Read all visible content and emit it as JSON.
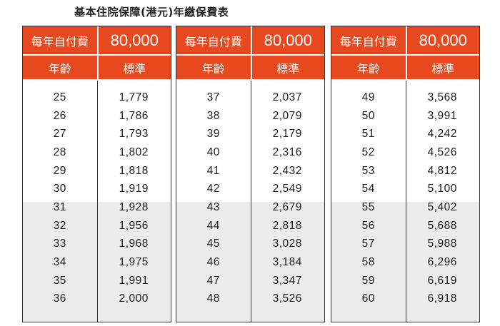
{
  "title": "基本住院保障(港元)年繳保費表",
  "header": {
    "deductible_label": "每年自付費",
    "deductible_value": "80,000",
    "age_label": "年齡",
    "plan_label": "標準"
  },
  "tables": [
    {
      "rows": [
        {
          "age": "25",
          "premium": "1,779"
        },
        {
          "age": "26",
          "premium": "1,786"
        },
        {
          "age": "27",
          "premium": "1,793"
        },
        {
          "age": "28",
          "premium": "1,802"
        },
        {
          "age": "29",
          "premium": "1,818"
        },
        {
          "age": "30",
          "premium": "1,919"
        },
        {
          "age": "31",
          "premium": "1,928"
        },
        {
          "age": "32",
          "premium": "1,956"
        },
        {
          "age": "33",
          "premium": "1,968"
        },
        {
          "age": "34",
          "premium": "1,975"
        },
        {
          "age": "35",
          "premium": "1,991"
        },
        {
          "age": "36",
          "premium": "2,000"
        }
      ]
    },
    {
      "rows": [
        {
          "age": "37",
          "premium": "2,037"
        },
        {
          "age": "38",
          "premium": "2,079"
        },
        {
          "age": "39",
          "premium": "2,179"
        },
        {
          "age": "40",
          "premium": "2,316"
        },
        {
          "age": "41",
          "premium": "2,432"
        },
        {
          "age": "42",
          "premium": "2,549"
        },
        {
          "age": "43",
          "premium": "2,679"
        },
        {
          "age": "44",
          "premium": "2,818"
        },
        {
          "age": "45",
          "premium": "3,028"
        },
        {
          "age": "46",
          "premium": "3,184"
        },
        {
          "age": "47",
          "premium": "3,347"
        },
        {
          "age": "48",
          "premium": "3,526"
        }
      ]
    },
    {
      "rows": [
        {
          "age": "49",
          "premium": "3,568"
        },
        {
          "age": "50",
          "premium": "3,991"
        },
        {
          "age": "51",
          "premium": "4,242"
        },
        {
          "age": "52",
          "premium": "4,526"
        },
        {
          "age": "53",
          "premium": "4,812"
        },
        {
          "age": "54",
          "premium": "5,100"
        },
        {
          "age": "55",
          "premium": "5,402"
        },
        {
          "age": "56",
          "premium": "5,688"
        },
        {
          "age": "57",
          "premium": "5,988"
        },
        {
          "age": "58",
          "premium": "6,296"
        },
        {
          "age": "59",
          "premium": "6,619"
        },
        {
          "age": "60",
          "premium": "6,918"
        }
      ]
    }
  ],
  "colors": {
    "header_bg": "#e8481d",
    "shade_bg": "#ececec"
  }
}
